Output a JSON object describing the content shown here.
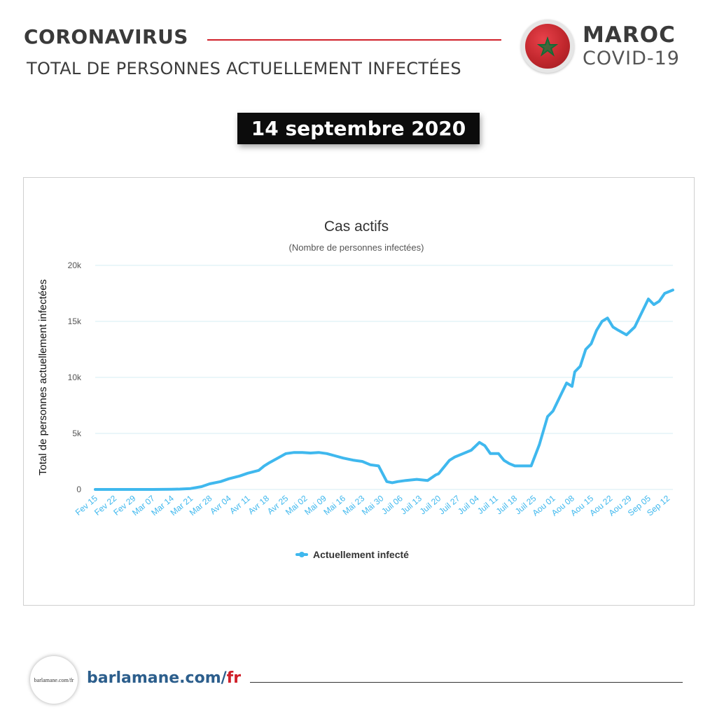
{
  "header": {
    "title": "CORONAVIRUS",
    "subtitle": "TOTAL DE PERSONNES ACTUELLEMENT INFECTÉES",
    "country": "MAROC",
    "country_sub": "COVID-19",
    "flag_icon": "morocco-flag-icon",
    "accent_color": "#d0202a"
  },
  "date_label": "14 septembre 2020",
  "footer": {
    "url_main": "barlamane.com/",
    "url_accent": "fr",
    "logo_text": "barlamane.com/fr",
    "brand_color": "#2c5e8c"
  },
  "chart_data": {
    "type": "line",
    "title": "Cas actifs",
    "subtitle": "(Nombre de personnes infectées)",
    "ylabel": "Total de personnes actuellement infectées",
    "xlabel": "",
    "ylim": [
      0,
      20000
    ],
    "yticks": [
      0,
      5000,
      10000,
      15000,
      20000
    ],
    "ytick_labels": [
      "0",
      "5k",
      "10k",
      "15k",
      "20k"
    ],
    "grid": true,
    "legend_position": "bottom",
    "line_color": "#3fb8ee",
    "x_tick_labels": [
      "Fev 15",
      "Fev 22",
      "Fev 29",
      "Mar 07",
      "Mar 14",
      "Mar 21",
      "Mar 28",
      "Avr 04",
      "Avr 11",
      "Avr 18",
      "Avr 25",
      "Mai 02",
      "Mai 09",
      "Mai 16",
      "Mai 23",
      "Mai 30",
      "Juil 06",
      "Juil 13",
      "Juil 20",
      "Juil 27",
      "Juil 04",
      "Juil 11",
      "Juil 18",
      "Juil 25",
      "Aou 01",
      "Aou 08",
      "Aou 15",
      "Aou 22",
      "Aou 29",
      "Sep 05",
      "Sep 12"
    ],
    "x_start": "2020-02-15",
    "series": [
      {
        "name": "Actuellement infecté",
        "x": [
          "2020-02-15",
          "2020-02-22",
          "2020-02-29",
          "2020-03-07",
          "2020-03-14",
          "2020-03-17",
          "2020-03-21",
          "2020-03-25",
          "2020-03-28",
          "2020-04-01",
          "2020-04-04",
          "2020-04-08",
          "2020-04-11",
          "2020-04-15",
          "2020-04-17",
          "2020-04-19",
          "2020-04-22",
          "2020-04-25",
          "2020-04-28",
          "2020-05-01",
          "2020-05-04",
          "2020-05-07",
          "2020-05-10",
          "2020-05-13",
          "2020-05-16",
          "2020-05-20",
          "2020-05-23",
          "2020-05-26",
          "2020-05-29",
          "2020-06-01",
          "2020-06-03",
          "2020-06-05",
          "2020-06-08",
          "2020-06-12",
          "2020-06-16",
          "2020-06-19",
          "2020-06-20",
          "2020-06-24",
          "2020-06-26",
          "2020-06-29",
          "2020-07-02",
          "2020-07-05",
          "2020-07-07",
          "2020-07-09",
          "2020-07-12",
          "2020-07-14",
          "2020-07-16",
          "2020-07-18",
          "2020-07-21",
          "2020-07-24",
          "2020-07-27",
          "2020-07-30",
          "2020-08-01",
          "2020-08-04",
          "2020-08-06",
          "2020-08-08",
          "2020-08-09",
          "2020-08-11",
          "2020-08-13",
          "2020-08-15",
          "2020-08-17",
          "2020-08-19",
          "2020-08-21",
          "2020-08-23",
          "2020-08-25",
          "2020-08-28",
          "2020-08-31",
          "2020-09-03",
          "2020-09-05",
          "2020-09-07",
          "2020-09-09",
          "2020-09-11",
          "2020-09-14"
        ],
        "values": [
          0,
          0,
          0,
          0,
          10,
          30,
          80,
          250,
          500,
          700,
          950,
          1200,
          1450,
          1700,
          2100,
          2400,
          2800,
          3200,
          3300,
          3300,
          3250,
          3300,
          3200,
          3000,
          2800,
          2600,
          2500,
          2200,
          2100,
          700,
          600,
          700,
          800,
          900,
          800,
          1300,
          1400,
          2600,
          2900,
          3200,
          3500,
          4200,
          3900,
          3200,
          3200,
          2600,
          2300,
          2100,
          2100,
          2100,
          4000,
          6500,
          7000,
          8500,
          9500,
          9200,
          10500,
          11000,
          12500,
          13000,
          14200,
          15000,
          15300,
          14500,
          14200,
          13800,
          14500,
          16000,
          17000,
          16500,
          16800,
          17500,
          17800
        ]
      }
    ]
  }
}
